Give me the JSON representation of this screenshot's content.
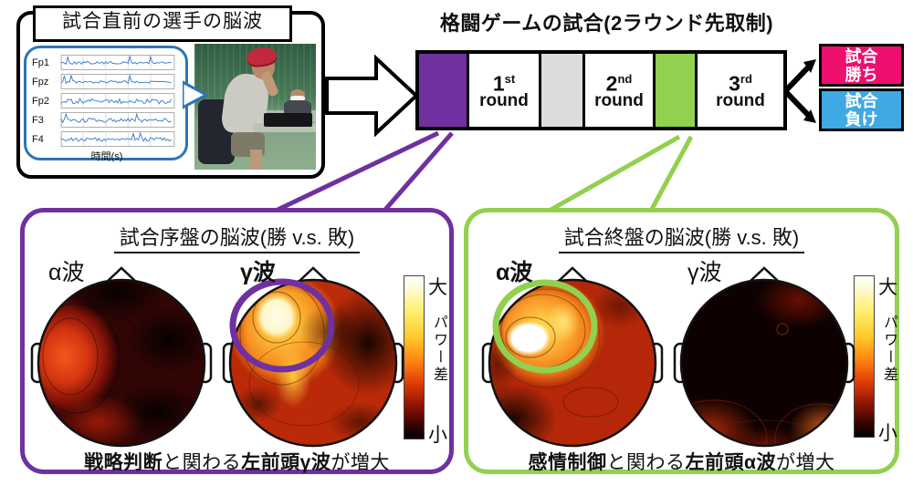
{
  "pre_match": {
    "title": "試合直前の選手の脳波",
    "channels": [
      "Fp1",
      "Fpz",
      "Fp2",
      "F3",
      "F4"
    ],
    "xlabel": "時間(s)"
  },
  "match": {
    "title": "格闘ゲームの試合(2ラウンド先取制)",
    "rounds": [
      {
        "num": "1",
        "sup": "st",
        "word": "round"
      },
      {
        "num": "2",
        "sup": "nd",
        "word": "round"
      },
      {
        "num": "3",
        "sup": "rd",
        "word": "round"
      }
    ],
    "win": {
      "line1": "試合",
      "line2": "勝ち"
    },
    "lose": {
      "line1": "試合",
      "line2": "負け"
    }
  },
  "early_panel": {
    "title": "試合序盤の脳波(勝 v.s. 敗)",
    "alpha_label": "α波",
    "gamma_label": "γ波",
    "colorbar": {
      "high": "大",
      "label": "パワー差",
      "low": "小"
    },
    "caption": {
      "b1": "戦略判断",
      "r1": "と関わる",
      "b2": "左前頭γ波",
      "r2": "が増大"
    }
  },
  "late_panel": {
    "title": "試合終盤の脳波(勝 v.s. 敗)",
    "alpha_label": "α波",
    "gamma_label": "γ波",
    "colorbar": {
      "high": "大",
      "label": "パワー差",
      "low": "小"
    },
    "caption": {
      "b1": "感情制御",
      "r1": "と関わる",
      "b2": "左前頭α波",
      "r2": "が増大"
    }
  },
  "colors": {
    "accent_purple": "#7030A0",
    "accent_green": "#92D050",
    "win_pink": "#EE0F6E",
    "lose_blue": "#3FA9E3",
    "eeg_blue": "#2E75B6",
    "segment_gray": "#DCDCDC"
  }
}
